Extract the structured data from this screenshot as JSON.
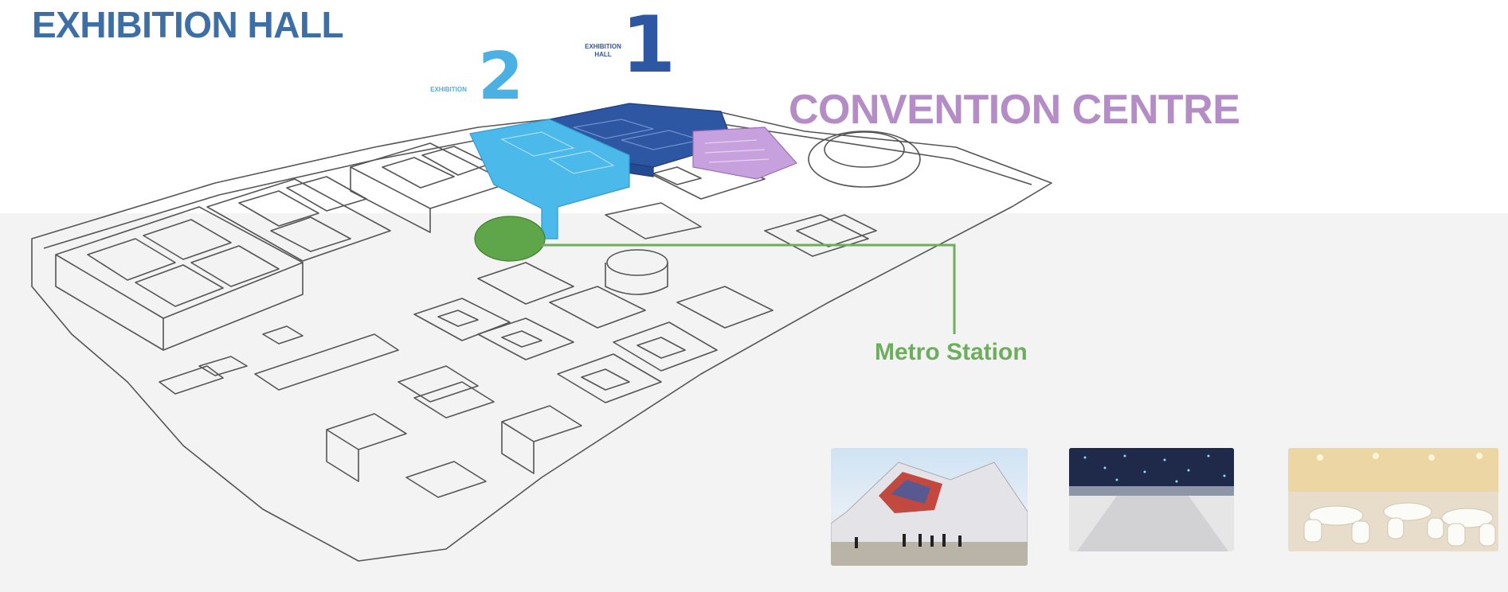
{
  "labels": {
    "exhibition_hall": "EXHIBITION HALL",
    "convention_centre": "CONVENTION CENTRE",
    "metro_station": "Metro Station",
    "hall_1_number": "1",
    "hall_1_caption_line1": "EXHIBITION",
    "hall_1_caption_line2": "HALL",
    "hall_2_number": "2",
    "hall_2_caption": "EXHIBITION"
  },
  "colors": {
    "exhibition_hall_title": "#3d6fa6",
    "hall_1": "#2e57a3",
    "hall_2": "#4bb0e2",
    "convention_centre": "#b48cc6",
    "metro_station": "#6cae5b",
    "outline": "#555555",
    "background_band": "#f4f3f3"
  },
  "photos": [
    {
      "name": "exterior-photo",
      "subject": "building exterior with patterned facade"
    },
    {
      "name": "hall-interior-photo",
      "subject": "interior hall with starry ceiling"
    },
    {
      "name": "banquet-room-photo",
      "subject": "banquet room with round tables"
    }
  ]
}
